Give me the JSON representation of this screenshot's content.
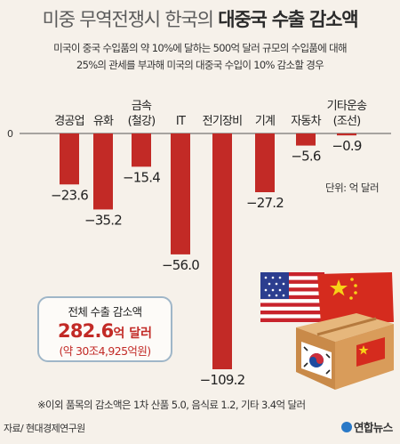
{
  "header": {
    "title_light": "미중 무역전쟁시 한국의 ",
    "title_bold": "대중국 수출 감소액",
    "subtitle_lines": [
      "미국이 중국 수입품의 약 10%에 달하는 500억 달러 규모의 수입품에 대해",
      "25%의 관세를 부과해 미국의 대중국 수입이 10% 감소할 경우"
    ]
  },
  "chart_data": {
    "type": "bar",
    "categories": [
      [
        "경공업"
      ],
      [
        "유화"
      ],
      [
        "금속",
        "(철강)"
      ],
      [
        "IT"
      ],
      [
        "전기장비"
      ],
      [
        "기계"
      ],
      [
        "자동차"
      ],
      [
        "기타운송",
        "(조선)"
      ]
    ],
    "values": [
      -23.6,
      -35.2,
      -15.4,
      -56.0,
      -109.2,
      -27.2,
      -5.6,
      -0.9
    ],
    "value_labels": [
      "−23.6",
      "−35.2",
      "−15.4",
      "−56.0",
      "−109.2",
      "−27.2",
      "−5.6",
      "−0.9"
    ],
    "zero_label": "0",
    "unit": "단위: 억 달러",
    "bar_color": "#c22a26",
    "ylim": [
      -109.2,
      0
    ]
  },
  "total": {
    "label": "전체 수출 감소액",
    "value": "282.6",
    "value_unit": "억 달러",
    "sub": "(약 30조4,925억원)"
  },
  "note": "※이외 품목의 감소액은 1차 산품 5.0, 음식료 1.2, 기타 3.4억 달러",
  "source": "자료/ 현대경제연구원",
  "brand": "연합뉴스",
  "illustration": {
    "icons": [
      "us-flag-icon",
      "china-flag-icon",
      "cardboard-box-icon",
      "korea-flag-icon"
    ]
  }
}
